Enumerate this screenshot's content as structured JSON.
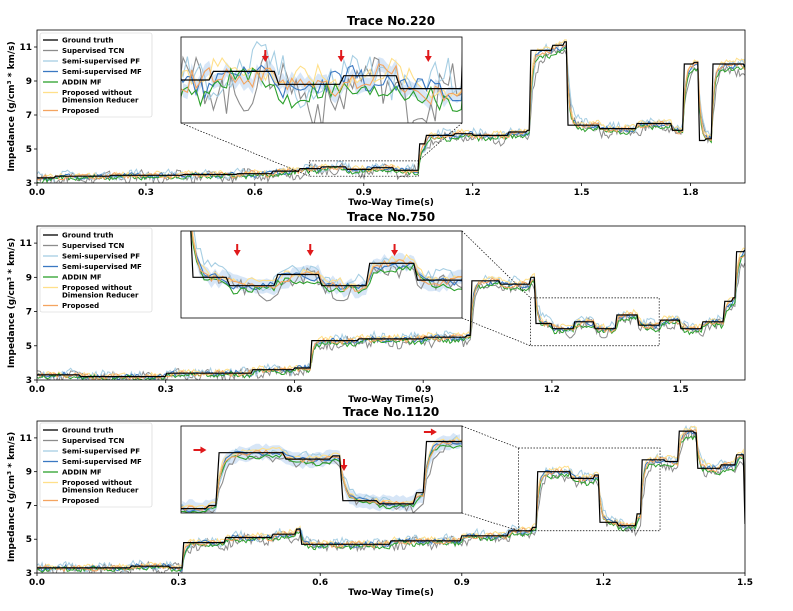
{
  "series_styles": [
    {
      "name": "Ground truth",
      "color": "#000000"
    },
    {
      "name": "Supervised TCN",
      "color": "#8c8c8c"
    },
    {
      "name": "Semi-supervised PF",
      "color": "#a6cee3"
    },
    {
      "name": "Semi-supervised MF",
      "color": "#3a78c2"
    },
    {
      "name": "ADDIN MF",
      "color": "#2ca02c"
    },
    {
      "name": "Proposed without Dimension Reducer",
      "color": "#ffe08a"
    },
    {
      "name": "Proposed",
      "color": "#f4a460"
    }
  ],
  "chart_data": [
    {
      "type": "line",
      "title": "Trace No.220",
      "xlabel": "Two-Way Time(s)",
      "ylabel": "Impedance (g/cm³ * km/s)",
      "xlim": [
        0.0,
        1.95
      ],
      "ylim": [
        3,
        12
      ],
      "xticks": [
        "0.0",
        "0.3",
        "0.6",
        "0.9",
        "1.2",
        "1.5",
        "1.8"
      ],
      "xtick_values": [
        0.0,
        0.3,
        0.6,
        0.9,
        1.2,
        1.5,
        1.8
      ],
      "yticks": [
        "3",
        "5",
        "7",
        "9",
        "11"
      ],
      "ytick_values": [
        3,
        5,
        7,
        9,
        11
      ],
      "legend": [
        "Ground truth",
        "Supervised TCN",
        "Semi-supervised PF",
        "Semi-supervised MF",
        "ADDIN MF",
        "Proposed without\n Dimension Reducer",
        "Proposed"
      ],
      "legend_position": "top-left",
      "zoom_window": {
        "x": [
          0.75,
          1.05
        ],
        "y": [
          3.4,
          4.3
        ]
      },
      "ground_truth_steps": [
        [
          0.0,
          3.3
        ],
        [
          0.05,
          3.4
        ],
        [
          0.2,
          3.45
        ],
        [
          0.4,
          3.5
        ],
        [
          0.55,
          3.55
        ],
        [
          0.65,
          3.7
        ],
        [
          0.72,
          3.85
        ],
        [
          0.78,
          3.95
        ],
        [
          0.85,
          3.8
        ],
        [
          0.92,
          3.9
        ],
        [
          0.98,
          3.75
        ],
        [
          1.05,
          5.3
        ],
        [
          1.07,
          5.8
        ],
        [
          1.15,
          5.9
        ],
        [
          1.2,
          5.8
        ],
        [
          1.3,
          6.0
        ],
        [
          1.35,
          6.1
        ],
        [
          1.36,
          10.8
        ],
        [
          1.42,
          11.1
        ],
        [
          1.45,
          11.3
        ],
        [
          1.46,
          6.4
        ],
        [
          1.55,
          6.2
        ],
        [
          1.65,
          6.5
        ],
        [
          1.75,
          6.1
        ],
        [
          1.78,
          10.0
        ],
        [
          1.81,
          10.1
        ],
        [
          1.82,
          5.5
        ],
        [
          1.84,
          5.6
        ],
        [
          1.86,
          10.0
        ],
        [
          1.95,
          9.8
        ]
      ],
      "arrows_in_inset": 3
    },
    {
      "type": "line",
      "title": "Trace No.750",
      "xlabel": "Two-Way Time(s)",
      "ylabel": "Impedance (g/cm³ * km/s)",
      "xlim": [
        0.0,
        1.65
      ],
      "ylim": [
        3,
        12
      ],
      "xticks": [
        "0.0",
        "0.3",
        "0.6",
        "0.9",
        "1.2",
        "1.5"
      ],
      "xtick_values": [
        0.0,
        0.3,
        0.6,
        0.9,
        1.2,
        1.5
      ],
      "yticks": [
        "3",
        "5",
        "7",
        "9",
        "11"
      ],
      "ytick_values": [
        3,
        5,
        7,
        9,
        11
      ],
      "legend": [
        "Ground truth",
        "Supervised TCN",
        "Semi-supervised PF",
        "Semi-supervised MF",
        "ADDIN MF",
        "Proposed without\n Dimension Reducer",
        "Proposed"
      ],
      "legend_position": "top-left",
      "zoom_window": {
        "x": [
          1.15,
          1.45
        ],
        "y": [
          5.0,
          7.8
        ]
      },
      "ground_truth_steps": [
        [
          0.0,
          3.3
        ],
        [
          0.1,
          3.2
        ],
        [
          0.3,
          3.4
        ],
        [
          0.5,
          3.6
        ],
        [
          0.6,
          3.7
        ],
        [
          0.64,
          5.3
        ],
        [
          0.75,
          5.4
        ],
        [
          0.9,
          5.5
        ],
        [
          1.0,
          5.6
        ],
        [
          1.01,
          8.8
        ],
        [
          1.08,
          8.6
        ],
        [
          1.15,
          9.0
        ],
        [
          1.16,
          6.3
        ],
        [
          1.2,
          6.0
        ],
        [
          1.25,
          6.4
        ],
        [
          1.3,
          6.0
        ],
        [
          1.35,
          6.8
        ],
        [
          1.4,
          6.2
        ],
        [
          1.45,
          6.5
        ],
        [
          1.5,
          6.0
        ],
        [
          1.55,
          6.4
        ],
        [
          1.6,
          7.6
        ],
        [
          1.62,
          7.8
        ],
        [
          1.63,
          10.5
        ],
        [
          1.65,
          10.6
        ]
      ],
      "arrows_in_inset": 3
    },
    {
      "type": "line",
      "title": "Trace No.1120",
      "xlabel": "Two-Way Time(s)",
      "ylabel": "Impedance (g/cm³ * km/s)",
      "xlim": [
        0.0,
        1.5
      ],
      "ylim": [
        3,
        12
      ],
      "xticks": [
        "0.0",
        "0.3",
        "0.6",
        "0.9",
        "1.2",
        "1.5"
      ],
      "xtick_values": [
        0.0,
        0.3,
        0.6,
        0.9,
        1.2,
        1.5
      ],
      "yticks": [
        "3",
        "5",
        "7",
        "9",
        "11"
      ],
      "ytick_values": [
        3,
        5,
        7,
        9,
        11
      ],
      "legend": [
        "Ground truth",
        "Supervised TCN",
        "Semi-supervised PF",
        "Semi-supervised MF",
        "ADDIN MF",
        "Proposed without\n Dimension Reducer",
        "Proposed"
      ],
      "legend_position": "top-left",
      "zoom_window": {
        "x": [
          1.02,
          1.32
        ],
        "y": [
          5.5,
          10.4
        ]
      },
      "ground_truth_steps": [
        [
          0.0,
          3.3
        ],
        [
          0.2,
          3.4
        ],
        [
          0.28,
          3.3
        ],
        [
          0.31,
          4.8
        ],
        [
          0.4,
          5.1
        ],
        [
          0.5,
          5.3
        ],
        [
          0.55,
          5.6
        ],
        [
          0.56,
          4.7
        ],
        [
          0.65,
          4.7
        ],
        [
          0.75,
          4.9
        ],
        [
          0.9,
          5.2
        ],
        [
          1.0,
          5.5
        ],
        [
          1.05,
          5.7
        ],
        [
          1.06,
          9.0
        ],
        [
          1.12,
          9.0
        ],
        [
          1.13,
          8.6
        ],
        [
          1.18,
          8.8
        ],
        [
          1.19,
          6.0
        ],
        [
          1.23,
          5.8
        ],
        [
          1.27,
          6.5
        ],
        [
          1.28,
          9.7
        ],
        [
          1.33,
          9.6
        ],
        [
          1.35,
          9.6
        ],
        [
          1.36,
          11.4
        ],
        [
          1.39,
          11.3
        ],
        [
          1.4,
          9.2
        ],
        [
          1.45,
          9.4
        ],
        [
          1.48,
          10.0
        ],
        [
          1.5,
          5.9
        ]
      ],
      "arrows_in_inset": 3
    }
  ]
}
